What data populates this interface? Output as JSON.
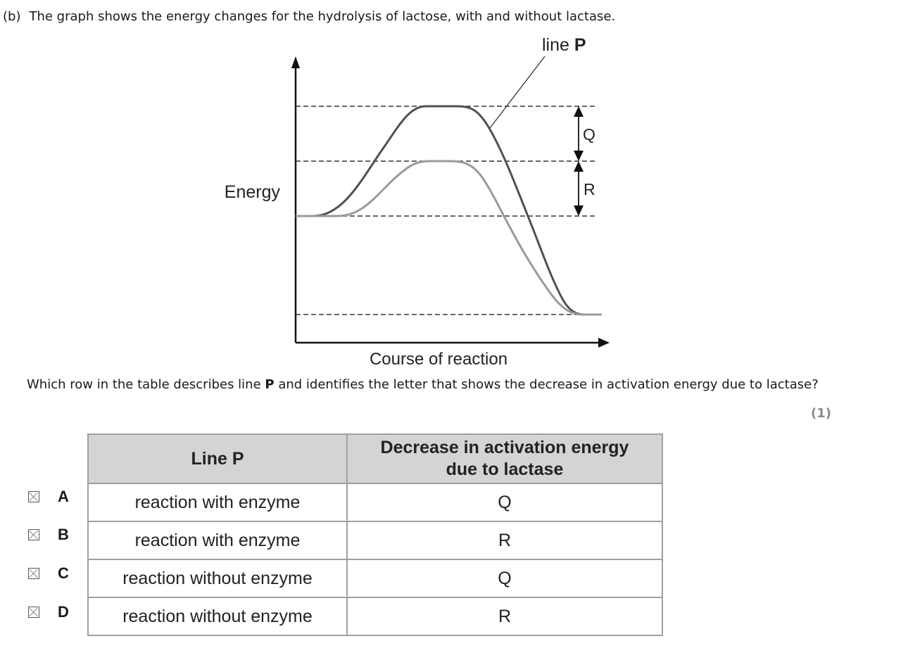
{
  "question": {
    "part": "(b)",
    "text": "The graph shows the energy changes for the hydrolysis of lactose, with and without lactase."
  },
  "graph": {
    "line_label_prefix": "line",
    "line_label_letter": "P",
    "y_axis_label": "Energy",
    "x_axis_label": "Course of reaction",
    "arrow_label_upper": "Q",
    "arrow_label_lower": "R"
  },
  "prompt": {
    "before": "Which row in the table describes line ",
    "bold": "P",
    "after": " and identifies the letter that shows the decrease in activation energy due to lactase?"
  },
  "marks": "(1)",
  "table": {
    "headers": [
      "Line P",
      "Decrease in activation energy",
      "due to lactase"
    ],
    "rows": [
      {
        "letter": "A",
        "line_p": "reaction with enzyme",
        "decrease": "Q"
      },
      {
        "letter": "B",
        "line_p": "reaction with enzyme",
        "decrease": "R"
      },
      {
        "letter": "C",
        "line_p": "reaction without enzyme",
        "decrease": "Q"
      },
      {
        "letter": "D",
        "line_p": "reaction without enzyme",
        "decrease": "R"
      }
    ]
  }
}
